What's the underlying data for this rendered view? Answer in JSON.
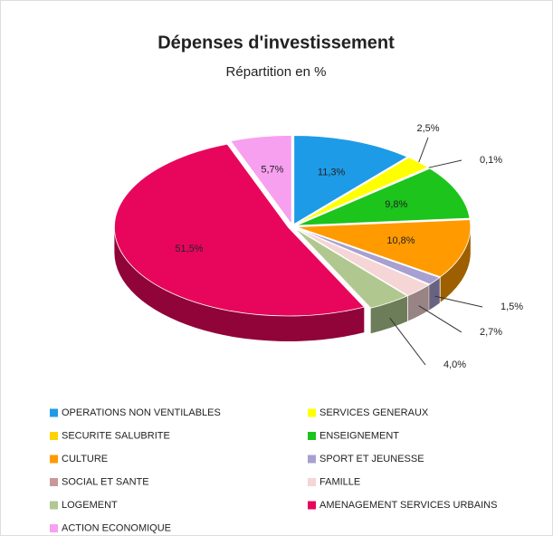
{
  "chart_data": {
    "type": "pie3d",
    "title": "Dépenses d'investissement",
    "subtitle": "Répartition en %",
    "categories": [
      "OPERATIONS NON VENTILABLES",
      "SERVICES GENERAUX",
      "SECURITE SALUBRITE",
      "ENSEIGNEMENT",
      "CULTURE",
      "SPORT ET JEUNESSE",
      "SOCIAL ET SANTE",
      "FAMILLE",
      "LOGEMENT",
      "AMENAGEMENT SERVICES URBAINS",
      "ACTION ECONOMIQUE"
    ],
    "values": [
      11.3,
      2.5,
      0.1,
      9.8,
      10.8,
      1.5,
      0.1,
      2.7,
      4.0,
      51.5,
      5.7
    ],
    "value_labels": [
      "11,3%",
      "2,5%",
      "0,1%",
      "9,8%",
      "10,8%",
      "1,5%",
      null,
      "2,7%",
      "4,0%",
      "51,5%",
      "5,7%"
    ],
    "colors": [
      "#1e9be6",
      "#ffff00",
      "#ffd200",
      "#1cc41c",
      "#ff9a00",
      "#a8a0d0",
      "#c89898",
      "#f5d5d5",
      "#b0c890",
      "#e8065c",
      "#f7a0f0"
    ],
    "legend": "bottom"
  }
}
